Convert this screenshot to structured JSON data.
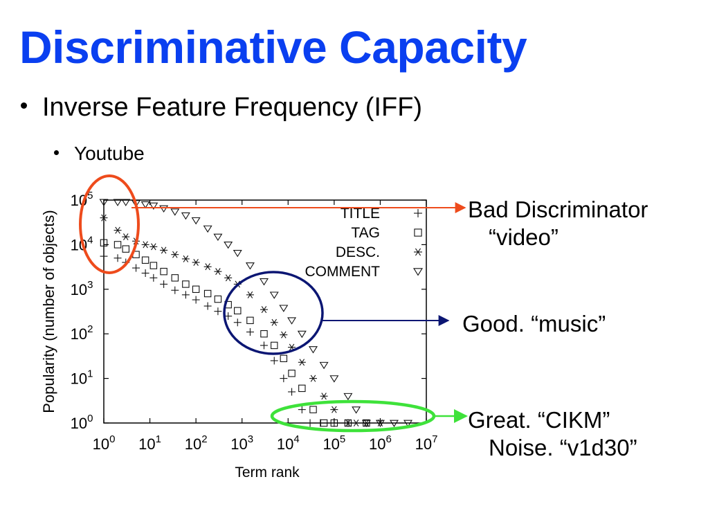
{
  "slide": {
    "title": "Discriminative Capacity",
    "bullets": [
      {
        "text": "Inverse Feature Frequency (IFF)",
        "level": 1
      },
      {
        "text": "Youtube",
        "level": 2
      }
    ]
  },
  "colors": {
    "title": "#0a3ff0",
    "bad_highlight": "#ee4b1c",
    "good_highlight": "#0b1673",
    "great_highlight": "#3ee23a"
  },
  "chart_data": {
    "type": "scatter",
    "xlabel": "Term rank",
    "ylabel": "Popularity (number of objects)",
    "x_scale": "log",
    "y_scale": "log",
    "xlim": [
      1,
      10000000
    ],
    "ylim": [
      1,
      100000
    ],
    "x_ticks": [
      {
        "base": "10",
        "exp": "0",
        "value": 1
      },
      {
        "base": "10",
        "exp": "1",
        "value": 10
      },
      {
        "base": "10",
        "exp": "2",
        "value": 100
      },
      {
        "base": "10",
        "exp": "3",
        "value": 1000
      },
      {
        "base": "10",
        "exp": "4",
        "value": 10000
      },
      {
        "base": "10",
        "exp": "5",
        "value": 100000
      },
      {
        "base": "10",
        "exp": "6",
        "value": 1000000
      },
      {
        "base": "10",
        "exp": "7",
        "value": 10000000
      }
    ],
    "y_ticks": [
      {
        "base": "10",
        "exp": "0",
        "value": 1
      },
      {
        "base": "10",
        "exp": "1",
        "value": 10
      },
      {
        "base": "10",
        "exp": "2",
        "value": 100
      },
      {
        "base": "10",
        "exp": "3",
        "value": 1000
      },
      {
        "base": "10",
        "exp": "4",
        "value": 10000
      },
      {
        "base": "10",
        "exp": "5",
        "value": 100000
      }
    ],
    "legend_position": "top-right",
    "series": [
      {
        "name": "TITLE",
        "marker": "plus",
        "x": [
          1,
          2,
          3,
          5,
          8,
          12,
          20,
          35,
          60,
          100,
          180,
          300,
          500,
          800,
          1500,
          3000,
          5000,
          8000,
          12000,
          20000,
          30000,
          50000,
          100000,
          200000
        ],
        "y": [
          5500,
          5000,
          4000,
          3000,
          2300,
          1800,
          1300,
          950,
          750,
          580,
          420,
          320,
          250,
          180,
          110,
          55,
          25,
          10,
          5,
          2,
          1,
          1,
          1,
          1
        ]
      },
      {
        "name": "TAG",
        "marker": "square",
        "x": [
          1,
          2,
          3,
          5,
          8,
          12,
          20,
          35,
          60,
          100,
          180,
          300,
          500,
          800,
          1500,
          3000,
          5000,
          8000,
          12000,
          20000,
          35000,
          60000,
          100000,
          200000,
          500000
        ],
        "y": [
          11000,
          10000,
          8000,
          6000,
          4500,
          3400,
          2500,
          1800,
          1300,
          1000,
          800,
          600,
          450,
          330,
          200,
          100,
          55,
          28,
          13,
          6,
          2,
          1,
          1,
          1,
          1
        ]
      },
      {
        "name": "DESC.",
        "marker": "asterisk",
        "x": [
          1,
          2,
          3,
          5,
          8,
          12,
          20,
          35,
          60,
          100,
          180,
          300,
          500,
          800,
          1500,
          3000,
          5000,
          8000,
          12000,
          20000,
          35000,
          60000,
          100000,
          200000,
          300000,
          500000,
          1000000
        ],
        "y": [
          40000,
          21000,
          15000,
          12000,
          10000,
          9000,
          7500,
          6000,
          4800,
          4000,
          3200,
          2500,
          1800,
          1300,
          750,
          350,
          180,
          95,
          50,
          23,
          10,
          4,
          2,
          1,
          1,
          1,
          1
        ]
      },
      {
        "name": "COMMENT",
        "marker": "triangle-down",
        "x": [
          1,
          2,
          3,
          5,
          8,
          12,
          20,
          35,
          60,
          100,
          180,
          300,
          500,
          800,
          1500,
          3000,
          5000,
          8000,
          12000,
          20000,
          35000,
          60000,
          100000,
          200000,
          300000,
          500000,
          1000000,
          2000000,
          4000000
        ],
        "y": [
          90000,
          90000,
          90000,
          85000,
          80000,
          75000,
          65000,
          55000,
          45000,
          35000,
          23000,
          15000,
          10000,
          6500,
          3400,
          1500,
          750,
          380,
          200,
          100,
          45,
          20,
          10,
          4,
          2,
          1,
          1,
          1,
          1
        ]
      }
    ],
    "annotations": [
      {
        "lines": [
          "Bad Discriminator",
          "“video”"
        ]
      },
      {
        "lines": [
          "Good. “music”"
        ]
      },
      {
        "lines": [
          "Great. “CIKM”",
          "Noise. “v1d30”"
        ]
      }
    ]
  }
}
